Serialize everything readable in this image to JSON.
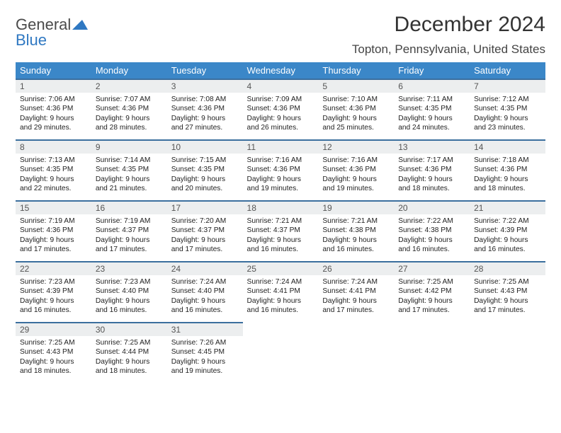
{
  "brand": {
    "word1": "General",
    "word2": "Blue"
  },
  "title": "December 2024",
  "location": "Topton, Pennsylvania, United States",
  "colors": {
    "header_bg": "#3b87c8",
    "header_text": "#ffffff",
    "daynum_bg": "#eceeef",
    "daynum_border": "#3b6f9e",
    "brand_blue": "#2f78c2"
  },
  "weekdays": [
    "Sunday",
    "Monday",
    "Tuesday",
    "Wednesday",
    "Thursday",
    "Friday",
    "Saturday"
  ],
  "weeks": [
    [
      {
        "n": "1",
        "sunrise": "Sunrise: 7:06 AM",
        "sunset": "Sunset: 4:36 PM",
        "day1": "Daylight: 9 hours",
        "day2": "and 29 minutes."
      },
      {
        "n": "2",
        "sunrise": "Sunrise: 7:07 AM",
        "sunset": "Sunset: 4:36 PM",
        "day1": "Daylight: 9 hours",
        "day2": "and 28 minutes."
      },
      {
        "n": "3",
        "sunrise": "Sunrise: 7:08 AM",
        "sunset": "Sunset: 4:36 PM",
        "day1": "Daylight: 9 hours",
        "day2": "and 27 minutes."
      },
      {
        "n": "4",
        "sunrise": "Sunrise: 7:09 AM",
        "sunset": "Sunset: 4:36 PM",
        "day1": "Daylight: 9 hours",
        "day2": "and 26 minutes."
      },
      {
        "n": "5",
        "sunrise": "Sunrise: 7:10 AM",
        "sunset": "Sunset: 4:36 PM",
        "day1": "Daylight: 9 hours",
        "day2": "and 25 minutes."
      },
      {
        "n": "6",
        "sunrise": "Sunrise: 7:11 AM",
        "sunset": "Sunset: 4:35 PM",
        "day1": "Daylight: 9 hours",
        "day2": "and 24 minutes."
      },
      {
        "n": "7",
        "sunrise": "Sunrise: 7:12 AM",
        "sunset": "Sunset: 4:35 PM",
        "day1": "Daylight: 9 hours",
        "day2": "and 23 minutes."
      }
    ],
    [
      {
        "n": "8",
        "sunrise": "Sunrise: 7:13 AM",
        "sunset": "Sunset: 4:35 PM",
        "day1": "Daylight: 9 hours",
        "day2": "and 22 minutes."
      },
      {
        "n": "9",
        "sunrise": "Sunrise: 7:14 AM",
        "sunset": "Sunset: 4:35 PM",
        "day1": "Daylight: 9 hours",
        "day2": "and 21 minutes."
      },
      {
        "n": "10",
        "sunrise": "Sunrise: 7:15 AM",
        "sunset": "Sunset: 4:35 PM",
        "day1": "Daylight: 9 hours",
        "day2": "and 20 minutes."
      },
      {
        "n": "11",
        "sunrise": "Sunrise: 7:16 AM",
        "sunset": "Sunset: 4:36 PM",
        "day1": "Daylight: 9 hours",
        "day2": "and 19 minutes."
      },
      {
        "n": "12",
        "sunrise": "Sunrise: 7:16 AM",
        "sunset": "Sunset: 4:36 PM",
        "day1": "Daylight: 9 hours",
        "day2": "and 19 minutes."
      },
      {
        "n": "13",
        "sunrise": "Sunrise: 7:17 AM",
        "sunset": "Sunset: 4:36 PM",
        "day1": "Daylight: 9 hours",
        "day2": "and 18 minutes."
      },
      {
        "n": "14",
        "sunrise": "Sunrise: 7:18 AM",
        "sunset": "Sunset: 4:36 PM",
        "day1": "Daylight: 9 hours",
        "day2": "and 18 minutes."
      }
    ],
    [
      {
        "n": "15",
        "sunrise": "Sunrise: 7:19 AM",
        "sunset": "Sunset: 4:36 PM",
        "day1": "Daylight: 9 hours",
        "day2": "and 17 minutes."
      },
      {
        "n": "16",
        "sunrise": "Sunrise: 7:19 AM",
        "sunset": "Sunset: 4:37 PM",
        "day1": "Daylight: 9 hours",
        "day2": "and 17 minutes."
      },
      {
        "n": "17",
        "sunrise": "Sunrise: 7:20 AM",
        "sunset": "Sunset: 4:37 PM",
        "day1": "Daylight: 9 hours",
        "day2": "and 17 minutes."
      },
      {
        "n": "18",
        "sunrise": "Sunrise: 7:21 AM",
        "sunset": "Sunset: 4:37 PM",
        "day1": "Daylight: 9 hours",
        "day2": "and 16 minutes."
      },
      {
        "n": "19",
        "sunrise": "Sunrise: 7:21 AM",
        "sunset": "Sunset: 4:38 PM",
        "day1": "Daylight: 9 hours",
        "day2": "and 16 minutes."
      },
      {
        "n": "20",
        "sunrise": "Sunrise: 7:22 AM",
        "sunset": "Sunset: 4:38 PM",
        "day1": "Daylight: 9 hours",
        "day2": "and 16 minutes."
      },
      {
        "n": "21",
        "sunrise": "Sunrise: 7:22 AM",
        "sunset": "Sunset: 4:39 PM",
        "day1": "Daylight: 9 hours",
        "day2": "and 16 minutes."
      }
    ],
    [
      {
        "n": "22",
        "sunrise": "Sunrise: 7:23 AM",
        "sunset": "Sunset: 4:39 PM",
        "day1": "Daylight: 9 hours",
        "day2": "and 16 minutes."
      },
      {
        "n": "23",
        "sunrise": "Sunrise: 7:23 AM",
        "sunset": "Sunset: 4:40 PM",
        "day1": "Daylight: 9 hours",
        "day2": "and 16 minutes."
      },
      {
        "n": "24",
        "sunrise": "Sunrise: 7:24 AM",
        "sunset": "Sunset: 4:40 PM",
        "day1": "Daylight: 9 hours",
        "day2": "and 16 minutes."
      },
      {
        "n": "25",
        "sunrise": "Sunrise: 7:24 AM",
        "sunset": "Sunset: 4:41 PM",
        "day1": "Daylight: 9 hours",
        "day2": "and 16 minutes."
      },
      {
        "n": "26",
        "sunrise": "Sunrise: 7:24 AM",
        "sunset": "Sunset: 4:41 PM",
        "day1": "Daylight: 9 hours",
        "day2": "and 17 minutes."
      },
      {
        "n": "27",
        "sunrise": "Sunrise: 7:25 AM",
        "sunset": "Sunset: 4:42 PM",
        "day1": "Daylight: 9 hours",
        "day2": "and 17 minutes."
      },
      {
        "n": "28",
        "sunrise": "Sunrise: 7:25 AM",
        "sunset": "Sunset: 4:43 PM",
        "day1": "Daylight: 9 hours",
        "day2": "and 17 minutes."
      }
    ],
    [
      {
        "n": "29",
        "sunrise": "Sunrise: 7:25 AM",
        "sunset": "Sunset: 4:43 PM",
        "day1": "Daylight: 9 hours",
        "day2": "and 18 minutes."
      },
      {
        "n": "30",
        "sunrise": "Sunrise: 7:25 AM",
        "sunset": "Sunset: 4:44 PM",
        "day1": "Daylight: 9 hours",
        "day2": "and 18 minutes."
      },
      {
        "n": "31",
        "sunrise": "Sunrise: 7:26 AM",
        "sunset": "Sunset: 4:45 PM",
        "day1": "Daylight: 9 hours",
        "day2": "and 19 minutes."
      },
      null,
      null,
      null,
      null
    ]
  ]
}
